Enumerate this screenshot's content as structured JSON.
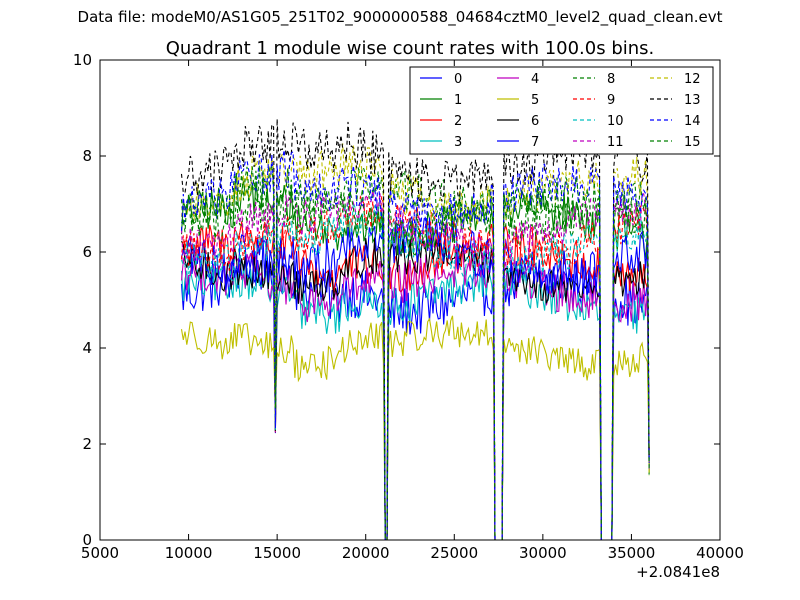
{
  "suptitle": "Data file: modeM0/AS1G05_251T02_9000000588_04684cztM0_level2_quad_clean.evt",
  "chart_data": {
    "type": "line",
    "title": "Quadrant 1 module wise count rates with 100.0s bins.",
    "xlabel": "",
    "ylabel": "",
    "x_offset_label": "+2.0841e8",
    "xlim": [
      5000,
      40000
    ],
    "ylim": [
      0,
      10
    ],
    "xticks": [
      5000,
      10000,
      15000,
      20000,
      25000,
      30000,
      35000,
      40000
    ],
    "yticks": [
      0,
      2,
      4,
      6,
      8,
      10
    ],
    "grid": false,
    "legend_location": "top-right",
    "legend_columns": 4,
    "bin_seconds": 100,
    "x_start": 9600,
    "x_end": 36000,
    "gaps": [
      {
        "start": 21100,
        "end": 21200
      },
      {
        "start": 27300,
        "end": 27700
      },
      {
        "start": 33300,
        "end": 33900
      }
    ],
    "dips": [
      {
        "x": 14900,
        "value": 2.4
      }
    ],
    "end_value": 1.6,
    "series": [
      {
        "name": "0",
        "color": "#0000ff",
        "dash": "solid",
        "mean": 5.1,
        "spread": 0.55
      },
      {
        "name": "1",
        "color": "#008000",
        "dash": "solid",
        "mean": 6.6,
        "spread": 0.45
      },
      {
        "name": "2",
        "color": "#ff0000",
        "dash": "solid",
        "mean": 5.8,
        "spread": 0.45
      },
      {
        "name": "3",
        "color": "#00bfbf",
        "dash": "solid",
        "mean": 5.0,
        "spread": 0.4
      },
      {
        "name": "4",
        "color": "#bf00bf",
        "dash": "solid",
        "mean": 5.3,
        "spread": 0.45
      },
      {
        "name": "5",
        "color": "#bfbf00",
        "dash": "solid",
        "mean": 4.0,
        "spread": 0.35
      },
      {
        "name": "6",
        "color": "#000000",
        "dash": "solid",
        "mean": 5.6,
        "spread": 0.4
      },
      {
        "name": "7",
        "color": "#0000ff",
        "dash": "solid",
        "mean": 5.9,
        "spread": 0.5
      },
      {
        "name": "8",
        "color": "#008000",
        "dash": "dashed",
        "mean": 6.9,
        "spread": 0.45
      },
      {
        "name": "9",
        "color": "#ff0000",
        "dash": "dashed",
        "mean": 6.3,
        "spread": 0.4
      },
      {
        "name": "10",
        "color": "#00bfbf",
        "dash": "dashed",
        "mean": 6.1,
        "spread": 0.4
      },
      {
        "name": "11",
        "color": "#bf00bf",
        "dash": "dashed",
        "mean": 6.5,
        "spread": 0.4
      },
      {
        "name": "12",
        "color": "#bfbf00",
        "dash": "dashed",
        "mean": 7.3,
        "spread": 0.45
      },
      {
        "name": "13",
        "color": "#000000",
        "dash": "dashed",
        "mean": 7.8,
        "spread": 0.5
      },
      {
        "name": "14",
        "color": "#0000ff",
        "dash": "dashed",
        "mean": 7.1,
        "spread": 0.45
      },
      {
        "name": "15",
        "color": "#008000",
        "dash": "dashed",
        "mean": 6.8,
        "spread": 0.45
      }
    ]
  }
}
